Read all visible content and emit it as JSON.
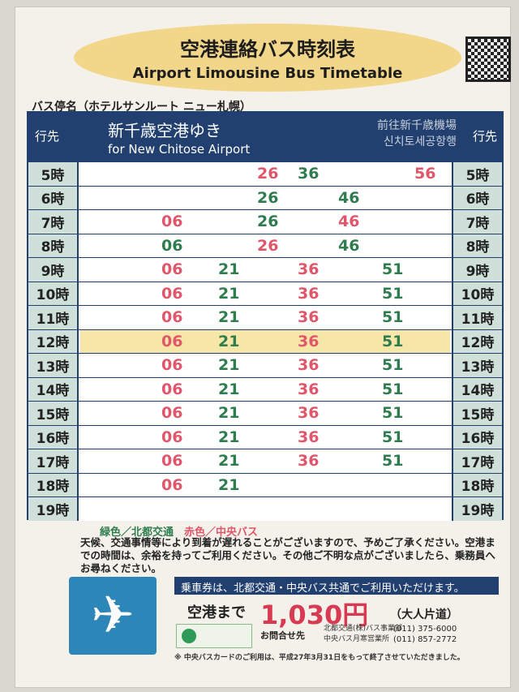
{
  "title": {
    "jp": "空港連絡バス時刻表",
    "en": "Airport Limousine Bus Timetable"
  },
  "stop_name": "バス停名（ホテルサンルート ニュー札幌）",
  "header": {
    "dest_label": "行先",
    "dest_jp": "新千歳空港ゆき",
    "dest_en": "for New Chitose Airport",
    "dest_zh": "前往新千歳機場",
    "dest_ko": "신치토세공항행"
  },
  "colors": {
    "hokuto": "#2f7d4f",
    "chuo": "#e0566a",
    "header": "#22406f",
    "highlight": "#f6e6a8"
  },
  "rows": [
    {
      "hour": "5時",
      "deps": [
        [
          "26",
          "chuo"
        ],
        [
          "36",
          "hokuto"
        ],
        [
          "56",
          "chuo"
        ]
      ]
    },
    {
      "hour": "6時",
      "deps": [
        [
          "26",
          "hokuto"
        ],
        [
          "46",
          "hokuto"
        ]
      ]
    },
    {
      "hour": "7時",
      "deps": [
        [
          "06",
          "chuo"
        ],
        [
          "26",
          "hokuto"
        ],
        [
          "46",
          "chuo"
        ]
      ]
    },
    {
      "hour": "8時",
      "deps": [
        [
          "06",
          "hokuto"
        ],
        [
          "26",
          "chuo"
        ],
        [
          "46",
          "hokuto"
        ]
      ]
    },
    {
      "hour": "9時",
      "deps": [
        [
          "06",
          "chuo"
        ],
        [
          "21",
          "hokuto"
        ],
        [
          "36",
          "chuo"
        ],
        [
          "51",
          "hokuto"
        ]
      ]
    },
    {
      "hour": "10時",
      "deps": [
        [
          "06",
          "chuo"
        ],
        [
          "21",
          "hokuto"
        ],
        [
          "36",
          "chuo"
        ],
        [
          "51",
          "hokuto"
        ]
      ]
    },
    {
      "hour": "11時",
      "deps": [
        [
          "06",
          "chuo"
        ],
        [
          "21",
          "hokuto"
        ],
        [
          "36",
          "chuo"
        ],
        [
          "51",
          "hokuto"
        ]
      ]
    },
    {
      "hour": "12時",
      "highlight": true,
      "deps": [
        [
          "06",
          "chuo"
        ],
        [
          "21",
          "hokuto"
        ],
        [
          "36",
          "chuo"
        ],
        [
          "51",
          "hokuto"
        ]
      ]
    },
    {
      "hour": "13時",
      "deps": [
        [
          "06",
          "chuo"
        ],
        [
          "21",
          "hokuto"
        ],
        [
          "36",
          "chuo"
        ],
        [
          "51",
          "hokuto"
        ]
      ]
    },
    {
      "hour": "14時",
      "deps": [
        [
          "06",
          "chuo"
        ],
        [
          "21",
          "hokuto"
        ],
        [
          "36",
          "chuo"
        ],
        [
          "51",
          "hokuto"
        ]
      ]
    },
    {
      "hour": "15時",
      "deps": [
        [
          "06",
          "chuo"
        ],
        [
          "21",
          "hokuto"
        ],
        [
          "36",
          "chuo"
        ],
        [
          "51",
          "hokuto"
        ]
      ]
    },
    {
      "hour": "16時",
      "deps": [
        [
          "06",
          "chuo"
        ],
        [
          "21",
          "hokuto"
        ],
        [
          "36",
          "chuo"
        ],
        [
          "51",
          "hokuto"
        ]
      ]
    },
    {
      "hour": "17時",
      "deps": [
        [
          "06",
          "chuo"
        ],
        [
          "21",
          "hokuto"
        ],
        [
          "36",
          "chuo"
        ],
        [
          "51",
          "hokuto"
        ]
      ]
    },
    {
      "hour": "18時",
      "deps": [
        [
          "06",
          "chuo"
        ],
        [
          "21",
          "hokuto"
        ]
      ]
    },
    {
      "hour": "19時",
      "deps": []
    }
  ],
  "legend": {
    "green": "緑色／北都交通",
    "red": "赤色／中央バス"
  },
  "notice": "天候、交通事情等により到着が遅れることがございますので、予めご了承ください。空港までの時間は、余裕を持ってご利用ください。その他ご不明な点がございましたら、乗務員へお尋ねください。",
  "ticket_banner": "乗車券は、北都交通・中央バス共通でご利用いただけます。",
  "fare": {
    "label": "空港まで",
    "price": "1,030円",
    "note": "（大人片道）"
  },
  "contact": {
    "label": "お問合せ先",
    "office1": "北都交通(株)バス事業部",
    "phone1": "(011) 375-6000",
    "office2": "中央バス月寒営業所",
    "phone2": "(011) 857-2772"
  },
  "footnote": "※ 中央バスカードのご利用は、平成27年3月31日をもって終了させていただきました。",
  "icons": {
    "plane": "airplane-icon",
    "qr": "qr-code"
  }
}
